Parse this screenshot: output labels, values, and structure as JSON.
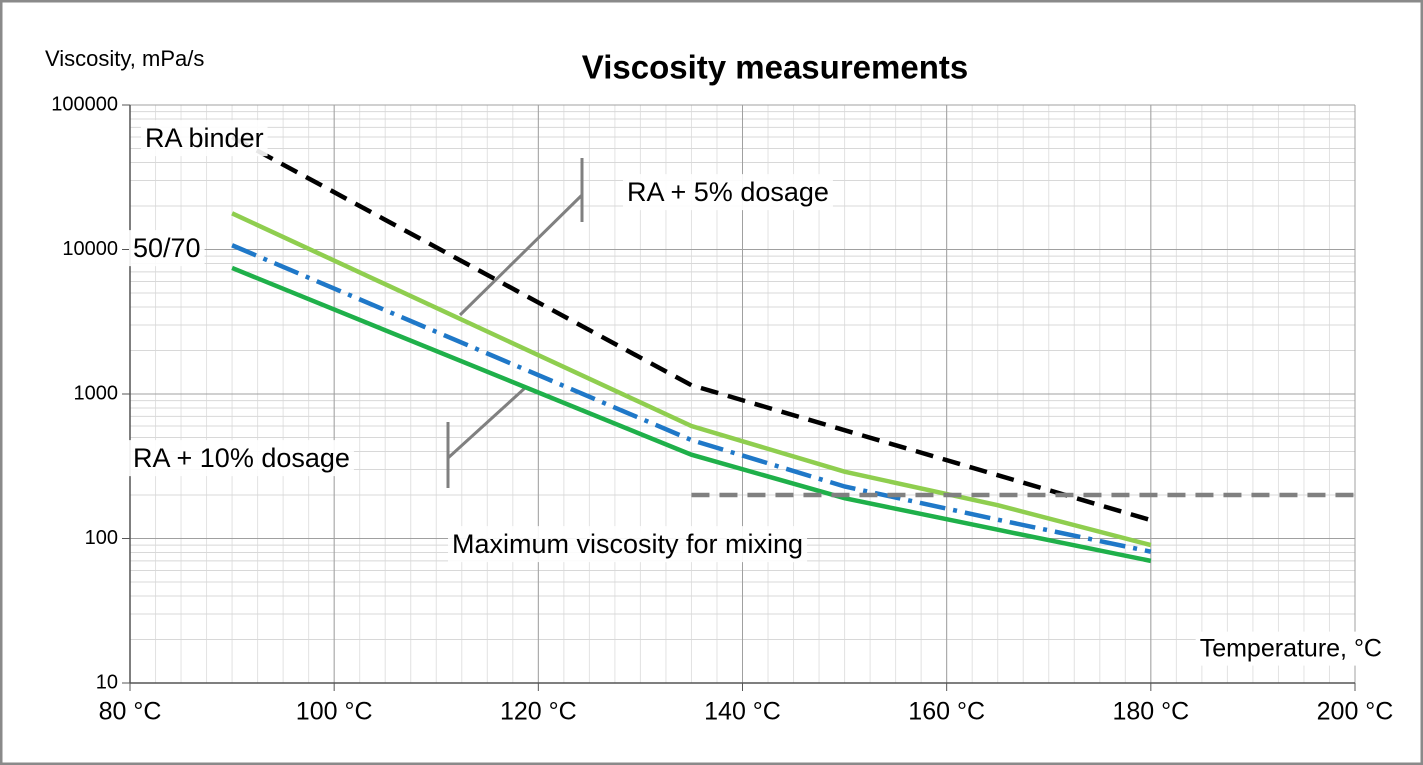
{
  "chart_data": {
    "type": "line",
    "title": "Viscosity measurements",
    "y_label": "Viscosity, mPa/s",
    "x_label": "Temperature,   °C",
    "log_y": true,
    "grid": true,
    "xlim": [
      80,
      200
    ],
    "ylim": [
      10,
      100000
    ],
    "xticks": [
      {
        "value": 80,
        "label": "80 °C"
      },
      {
        "value": 100,
        "label": "100 °C"
      },
      {
        "value": 120,
        "label": "120 °C"
      },
      {
        "value": 140,
        "label": "140 °C"
      },
      {
        "value": 160,
        "label": "160 °C"
      },
      {
        "value": 180,
        "label": "180 °C"
      },
      {
        "value": 200,
        "label": "200 °C"
      }
    ],
    "yticks": [
      10,
      100,
      1000,
      10000,
      100000
    ],
    "series": [
      {
        "name": "RA binder",
        "color": "#000000",
        "dash": "dashed",
        "x": [
          90,
          135,
          180
        ],
        "values": [
          60000,
          1150,
          134
        ]
      },
      {
        "name": "RA + 5% dosage",
        "color": "#8fce4f",
        "dash": "solid",
        "x": [
          90,
          135,
          150,
          165,
          180
        ],
        "values": [
          17800,
          600,
          290,
          170,
          90
        ]
      },
      {
        "name": "50/70",
        "color": "#1f78c8",
        "dash": "dashdot",
        "x": [
          90,
          135,
          150,
          165,
          180
        ],
        "values": [
          10700,
          480,
          229,
          135,
          81
        ]
      },
      {
        "name": "RA + 10% dosage",
        "color": "#1fb04a",
        "dash": "solid",
        "x": [
          90,
          135,
          150,
          165,
          180
        ],
        "values": [
          7450,
          380,
          190,
          115,
          70
        ]
      },
      {
        "name": "Maximum  viscosity for mixing",
        "color": "#808080",
        "dash": "dashed",
        "x": [
          135,
          200
        ],
        "values": [
          200,
          200
        ]
      }
    ]
  }
}
